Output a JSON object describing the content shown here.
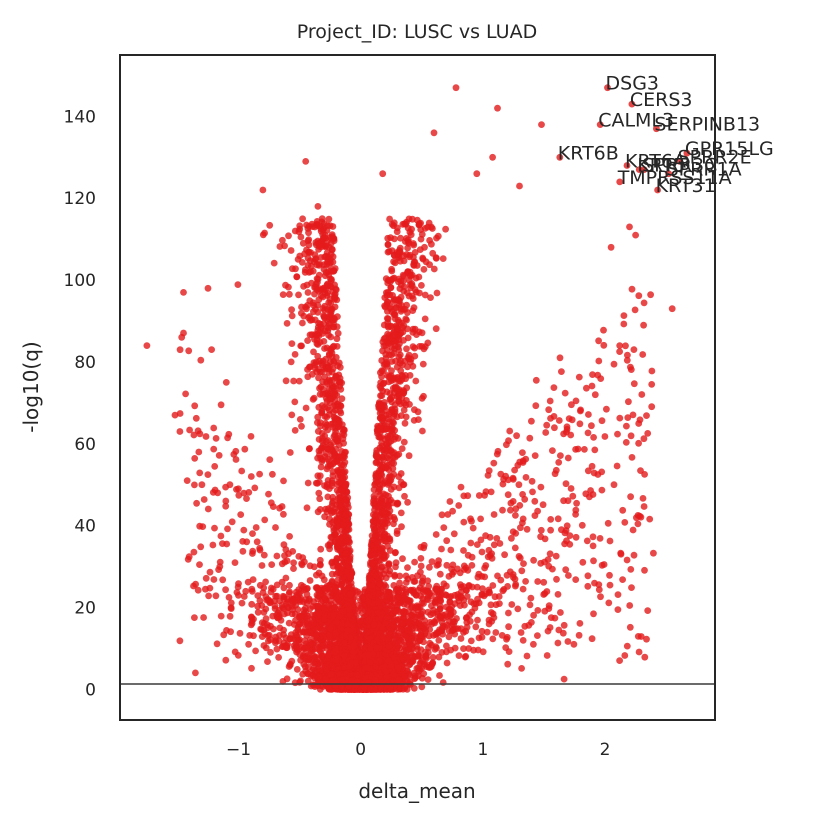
{
  "chart_data": {
    "type": "scatter",
    "title": "Project_ID: LUSC vs LUAD",
    "xlabel": "delta_mean",
    "ylabel": "-log10(q)",
    "xlim": [
      -1.97,
      2.9
    ],
    "ylim": [
      -7.5,
      155
    ],
    "xticks": [
      -1,
      0,
      1,
      2
    ],
    "xtick_labels": [
      "−1",
      "0",
      "1",
      "2"
    ],
    "yticks": [
      0,
      20,
      40,
      60,
      80,
      100,
      120,
      140
    ],
    "ytick_labels": [
      "0",
      "20",
      "40",
      "60",
      "80",
      "100",
      "120",
      "140"
    ],
    "grid": false,
    "threshold_line": {
      "y": 1.3,
      "color": "#3a3a3a"
    },
    "point_color": "#e41a1c",
    "point_opacity": 0.8,
    "labeled_points": [
      {
        "label": "DSG3",
        "x": 2.02,
        "y": 147
      },
      {
        "label": "CERS3",
        "x": 2.22,
        "y": 143
      },
      {
        "label": "CALML3",
        "x": 1.96,
        "y": 138
      },
      {
        "label": "SERPINB13",
        "x": 2.42,
        "y": 137
      },
      {
        "label": "KRT6B",
        "x": 1.63,
        "y": 130
      },
      {
        "label": "GPR15LG",
        "x": 2.67,
        "y": 131
      },
      {
        "label": "SPRR2E",
        "x": 2.61,
        "y": 129
      },
      {
        "label": "KRT6A",
        "x": 2.18,
        "y": 128
      },
      {
        "label": "SPRR3C",
        "x": 2.32,
        "y": 127
      },
      {
        "label": "KRT5",
        "x": 2.28,
        "y": 127
      },
      {
        "label": "SPRR1A",
        "x": 2.52,
        "y": 126
      },
      {
        "label": "TMPRSS11A",
        "x": 2.12,
        "y": 124
      },
      {
        "label": "KRT31",
        "x": 2.43,
        "y": 122
      }
    ],
    "outlier_points": [
      {
        "x": -1.75,
        "y": 84
      },
      {
        "x": -1.45,
        "y": 97
      },
      {
        "x": -1.25,
        "y": 98
      },
      {
        "x": -1.52,
        "y": 67
      },
      {
        "x": -1.48,
        "y": 63
      },
      {
        "x": -1.42,
        "y": 51
      },
      {
        "x": -1.3,
        "y": 50
      },
      {
        "x": -1.17,
        "y": 48
      },
      {
        "x": -1.22,
        "y": 83
      },
      {
        "x": -1.1,
        "y": 75
      },
      {
        "x": -0.8,
        "y": 122
      },
      {
        "x": -0.45,
        "y": 129
      },
      {
        "x": -0.35,
        "y": 118
      },
      {
        "x": 0.78,
        "y": 147
      },
      {
        "x": 1.12,
        "y": 142
      },
      {
        "x": 1.48,
        "y": 138
      },
      {
        "x": 0.6,
        "y": 136
      },
      {
        "x": 1.08,
        "y": 130
      },
      {
        "x": 0.18,
        "y": 126
      },
      {
        "x": 0.95,
        "y": 126
      },
      {
        "x": 1.3,
        "y": 123
      },
      {
        "x": 2.55,
        "y": 93
      },
      {
        "x": 2.12,
        "y": 84
      },
      {
        "x": 1.92,
        "y": 72
      },
      {
        "x": 2.2,
        "y": 113
      },
      {
        "x": 2.25,
        "y": 111
      },
      {
        "x": 2.05,
        "y": 108
      }
    ],
    "bulk": {
      "description_only_for_rendering": "",
      "approx_point_count": 6000
    }
  }
}
